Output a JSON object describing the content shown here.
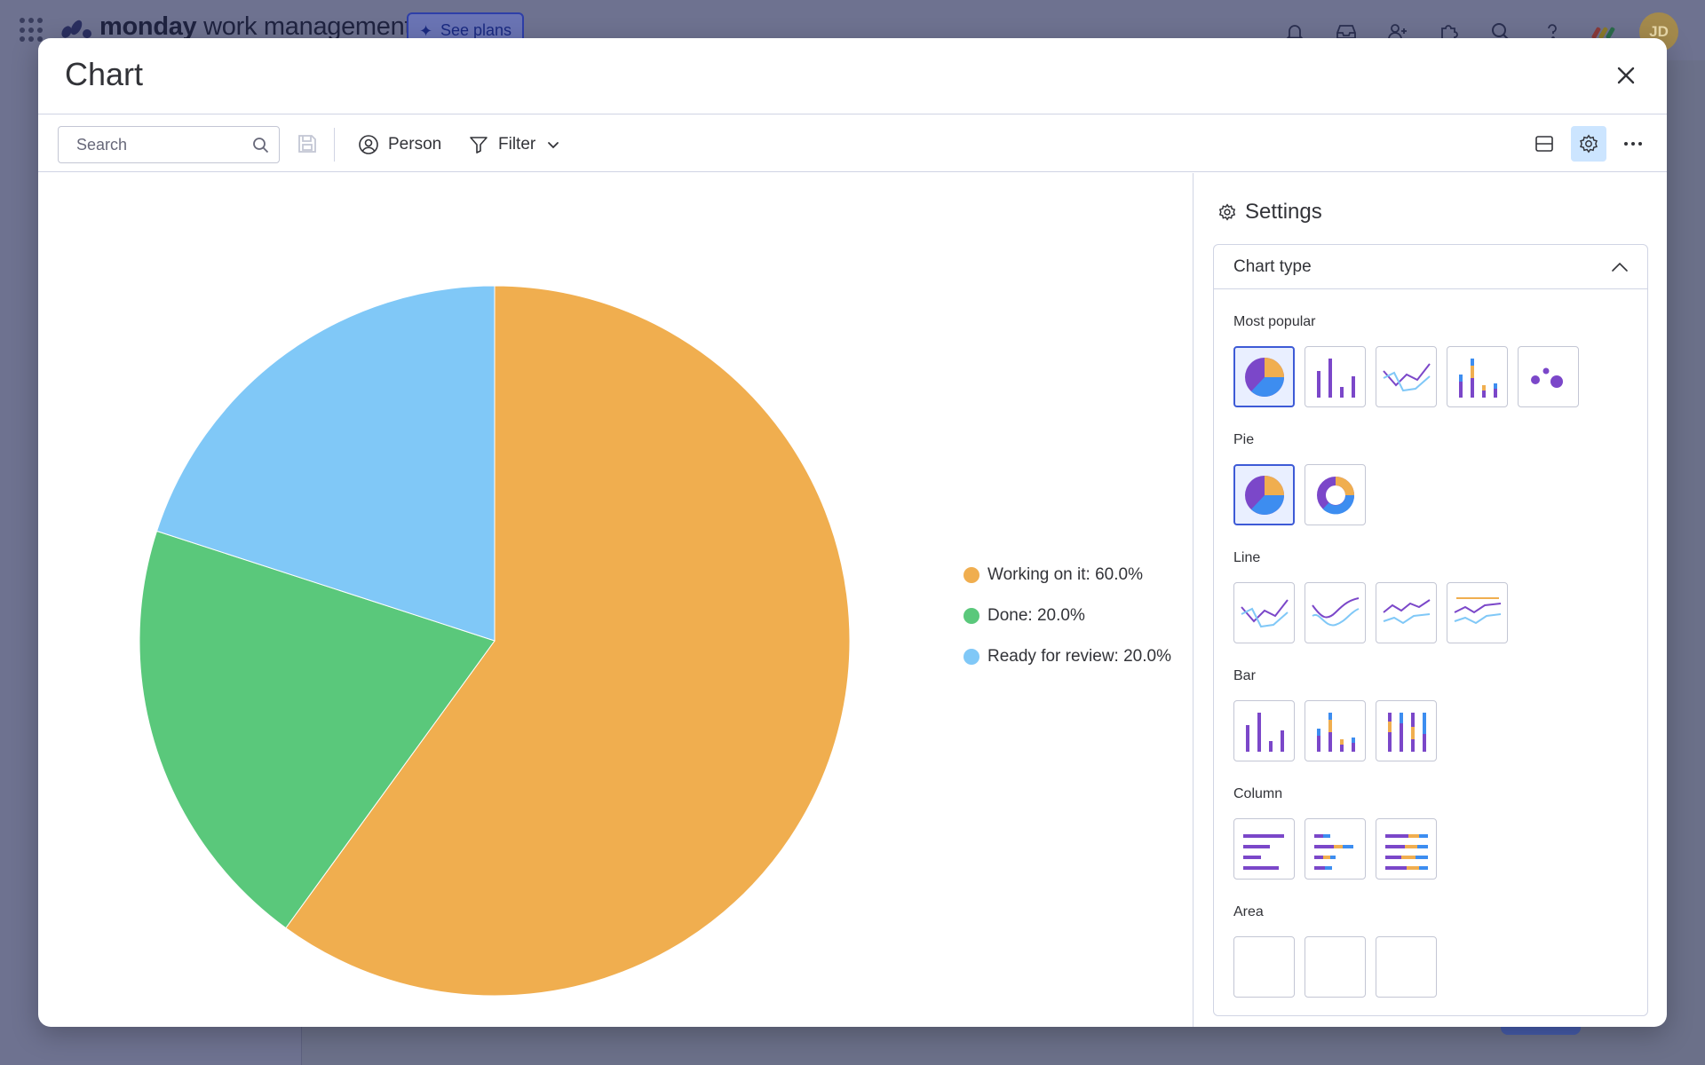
{
  "app": {
    "brand_bold": "monday",
    "brand_rest": " work management",
    "see_plans_label": "See plans",
    "avatar_initials": "JD"
  },
  "modal": {
    "title": "Chart"
  },
  "toolbar": {
    "search_placeholder": "Search",
    "person_label": "Person",
    "filter_label": "Filter"
  },
  "settings": {
    "title": "Settings",
    "chart_type_label": "Chart type",
    "sections": [
      {
        "label": "Most popular",
        "options": [
          "pie",
          "bar",
          "line",
          "stacked-bar",
          "bubble"
        ],
        "selected": 0
      },
      {
        "label": "Pie",
        "options": [
          "pie",
          "donut"
        ],
        "selected": 0
      },
      {
        "label": "Line",
        "options": [
          "line",
          "smooth-line",
          "line-variant",
          "line-with-goal"
        ],
        "selected": -1
      },
      {
        "label": "Bar",
        "options": [
          "bar",
          "stacked-bar",
          "stacked-bar-100"
        ],
        "selected": -1
      },
      {
        "label": "Column",
        "options": [
          "column",
          "stacked-column",
          "stacked-column-100"
        ],
        "selected": -1
      },
      {
        "label": "Area",
        "options": [
          "area",
          "stacked-area",
          "stacked-area-100"
        ],
        "selected": -1
      }
    ]
  },
  "colors": {
    "working": "#f0ae4f",
    "done": "#5ac87b",
    "review": "#80c8f7",
    "purple": "#7b47c9",
    "blue": "#3d8df0",
    "accent": "#3d5ad6"
  },
  "chart_data": {
    "type": "pie",
    "categories": [
      "Working on it",
      "Done",
      "Ready for review"
    ],
    "values": [
      60.0,
      20.0,
      20.0
    ],
    "colors": [
      "#f0ae4f",
      "#5ac87b",
      "#80c8f7"
    ],
    "legend_labels": [
      "Working on it: 60.0%",
      "Done: 20.0%",
      "Ready for review: 20.0%"
    ],
    "legend_position": "right"
  }
}
